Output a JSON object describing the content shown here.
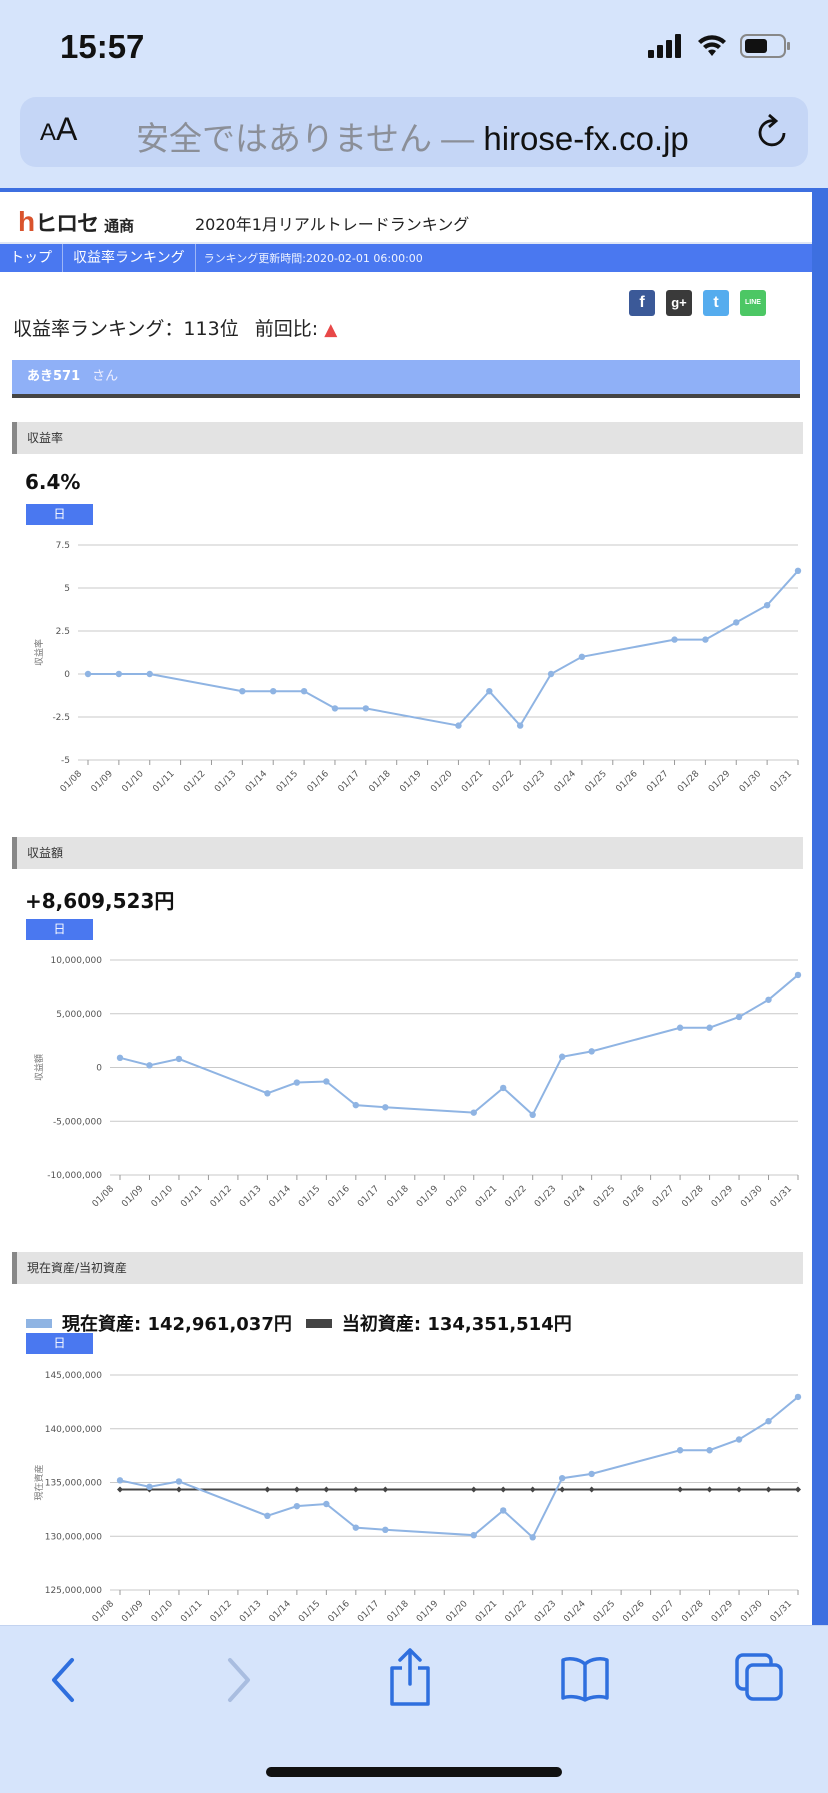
{
  "status": {
    "time": "15:57"
  },
  "browser": {
    "aa_label": "AA",
    "warning": "安全ではありません",
    "separator": " — ",
    "domain": "hirose-fx.co.jp"
  },
  "site": {
    "logo_text": "ヒロセ",
    "logo_sub": "通商",
    "page_title": "2020年1月リアルトレードランキング",
    "nav": {
      "top": "トップ",
      "ranking": "収益率ランキング",
      "updated": "ランキング更新時間:2020-02-01 06:00:00"
    }
  },
  "social": {
    "fb": "f",
    "gplus": "g+",
    "tw": "t",
    "line": "LINE"
  },
  "rank": {
    "text": "収益率ランキング：113位",
    "prev_label": "前回比:",
    "arrow": "🡅"
  },
  "user": {
    "name": "あき571",
    "suffix": "さん"
  },
  "sections": {
    "rate": {
      "title": "収益率",
      "value": "6.4%",
      "button": "日"
    },
    "amount": {
      "title": "収益額",
      "value": "+8,609,523円",
      "button": "日"
    },
    "assets": {
      "title": "現在資産/当初資産",
      "current_label": "現在資産: 142,961,037円",
      "initial_label": "当初資産: 134,351,514円",
      "button": "日",
      "current_color": "#8fb4e3",
      "initial_color": "#444444"
    }
  },
  "chart_data": [
    {
      "type": "line",
      "ylabel": "収益率",
      "ylim": [
        -5,
        7.5
      ],
      "yticks": [
        "7.5",
        "5",
        "2.5",
        "0",
        "-2.5",
        "-5"
      ],
      "ytick_values": [
        7.5,
        5,
        2.5,
        0,
        -2.5,
        -5
      ],
      "categories": [
        "01/08",
        "01/09",
        "01/10",
        "01/11",
        "01/12",
        "01/13",
        "01/14",
        "01/15",
        "01/16",
        "01/17",
        "01/18",
        "01/19",
        "01/20",
        "01/21",
        "01/22",
        "01/23",
        "01/24",
        "01/25",
        "01/26",
        "01/27",
        "01/28",
        "01/29",
        "01/30",
        "01/31"
      ],
      "series": [
        {
          "values": [
            0,
            0,
            0,
            null,
            null,
            -1,
            -1,
            -1,
            -2,
            -2,
            null,
            null,
            -3,
            -1,
            -3,
            0,
            1,
            null,
            null,
            2,
            2,
            3,
            4,
            6
          ],
          "color": "#8fb4e3"
        }
      ],
      "grid": true
    },
    {
      "type": "line",
      "ylabel": "収益額",
      "ylim": [
        -10000000,
        10000000
      ],
      "yticks": [
        "10,000,000",
        "5,000,000",
        "0",
        "-5,000,000",
        "-10,000,000"
      ],
      "ytick_values": [
        10000000,
        5000000,
        0,
        -5000000,
        -10000000
      ],
      "categories": [
        "01/08",
        "01/09",
        "01/10",
        "01/11",
        "01/12",
        "01/13",
        "01/14",
        "01/15",
        "01/16",
        "01/17",
        "01/18",
        "01/19",
        "01/20",
        "01/21",
        "01/22",
        "01/23",
        "01/24",
        "01/25",
        "01/26",
        "01/27",
        "01/28",
        "01/29",
        "01/30",
        "01/31"
      ],
      "series": [
        {
          "values": [
            900000,
            200000,
            800000,
            null,
            null,
            -2400000,
            -1400000,
            -1300000,
            -3500000,
            -3700000,
            null,
            null,
            -4200000,
            -1900000,
            -4400000,
            1000000,
            1500000,
            null,
            null,
            3700000,
            3700000,
            4700000,
            6300000,
            8609523
          ],
          "color": "#8fb4e3"
        }
      ],
      "grid": true
    },
    {
      "type": "line",
      "ylabel": "現在資産",
      "ylim": [
        125000000,
        145000000
      ],
      "yticks": [
        "145,000,000",
        "140,000,000",
        "135,000,000",
        "130,000,000",
        "125,000,000"
      ],
      "ytick_values": [
        145000000,
        140000000,
        135000000,
        130000000,
        125000000
      ],
      "categories": [
        "01/08",
        "01/09",
        "01/10",
        "01/11",
        "01/12",
        "01/13",
        "01/14",
        "01/15",
        "01/16",
        "01/17",
        "01/18",
        "01/19",
        "01/20",
        "01/21",
        "01/22",
        "01/23",
        "01/24",
        "01/25",
        "01/26",
        "01/27",
        "01/28",
        "01/29",
        "01/30",
        "01/31"
      ],
      "series": [
        {
          "name": "現在資産",
          "values": [
            135200000,
            134600000,
            135100000,
            null,
            null,
            131900000,
            132800000,
            133000000,
            130800000,
            130600000,
            null,
            null,
            130100000,
            132400000,
            129900000,
            135400000,
            135800000,
            null,
            null,
            138000000,
            138000000,
            139000000,
            140700000,
            142961037
          ],
          "color": "#8fb4e3"
        },
        {
          "name": "当初資産",
          "values": [
            134351514,
            134351514,
            134351514,
            null,
            null,
            134351514,
            134351514,
            134351514,
            134351514,
            134351514,
            null,
            null,
            134351514,
            134351514,
            134351514,
            134351514,
            134351514,
            null,
            null,
            134351514,
            134351514,
            134351514,
            134351514,
            134351514
          ],
          "color": "#444444"
        }
      ],
      "grid": true
    }
  ]
}
